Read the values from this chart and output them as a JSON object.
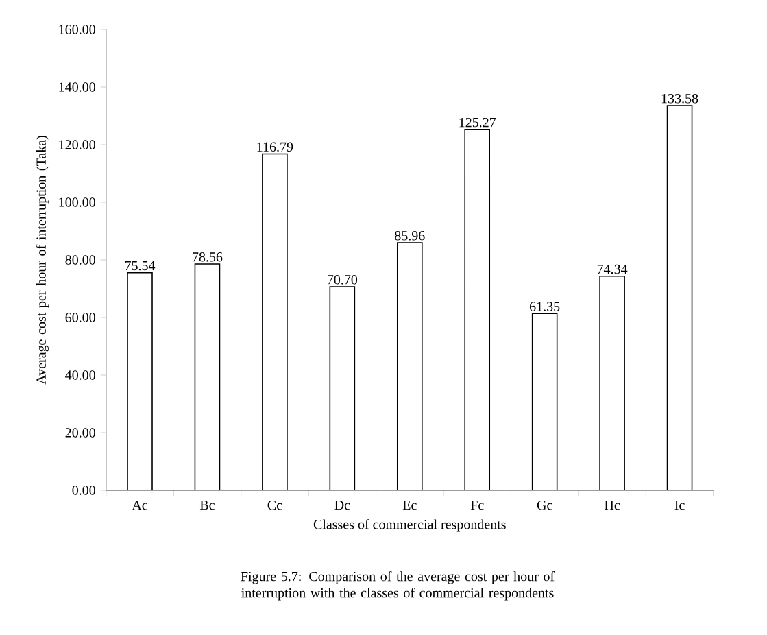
{
  "chart_data": {
    "type": "bar",
    "xlabel": "Classes of commercial respondents",
    "ylabel": "Average cost per hour of interruption (Taka)",
    "categories": [
      "Ac",
      "Bc",
      "Cc",
      "Dc",
      "Ec",
      "Fc",
      "Gc",
      "Hc",
      "Ic"
    ],
    "values": [
      75.54,
      78.56,
      116.79,
      70.7,
      85.96,
      125.27,
      61.35,
      74.34,
      133.58
    ],
    "value_labels": [
      "75.54",
      "78.56",
      "116.79",
      "70.70",
      "85.96",
      "125.27",
      "61.35",
      "74.34",
      "133.58"
    ],
    "color": "#ffffff",
    "ylim": [
      0,
      160
    ],
    "yticks": [
      {
        "value": 0,
        "label": "0.00"
      },
      {
        "value": 20,
        "label": "20.00"
      },
      {
        "value": 40,
        "label": "40.00"
      },
      {
        "value": 60,
        "label": "60.00"
      },
      {
        "value": 80,
        "label": "80.00"
      },
      {
        "value": 100,
        "label": "100.00"
      },
      {
        "value": 120,
        "label": "120.00"
      },
      {
        "value": 140,
        "label": "140.00"
      },
      {
        "value": 160,
        "label": "160.00"
      }
    ],
    "grid": false,
    "annotations": [
      "Figure 5.7: Comparison of the average cost per hour of interruption with the classes of commercial respondents"
    ]
  }
}
